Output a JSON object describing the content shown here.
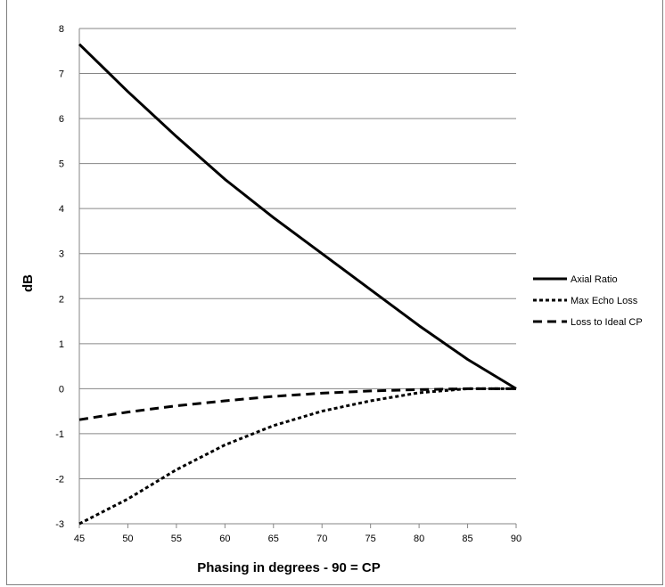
{
  "chart_data": {
    "type": "line",
    "title": "",
    "xlabel": "Phasing in degrees - 90 = CP",
    "ylabel": "dB",
    "xlim": [
      45,
      90
    ],
    "ylim": [
      -3,
      8
    ],
    "x_ticks": [
      45,
      50,
      55,
      60,
      65,
      70,
      75,
      80,
      85,
      90
    ],
    "y_ticks": [
      -3,
      -2,
      -1,
      0,
      1,
      2,
      3,
      4,
      5,
      6,
      7,
      8
    ],
    "grid": "horizontal",
    "legend_position": "right",
    "x": [
      45,
      50,
      55,
      60,
      65,
      70,
      75,
      80,
      85,
      90
    ],
    "series": [
      {
        "name": "Axial Ratio",
        "style": "solid",
        "color": "#000000",
        "values": [
          7.65,
          6.6,
          5.6,
          4.65,
          3.8,
          3.0,
          2.2,
          1.4,
          0.65,
          0.0
        ]
      },
      {
        "name": "Max Echo Loss",
        "style": "dotted",
        "color": "#000000",
        "values": [
          -3.0,
          -2.45,
          -1.8,
          -1.25,
          -0.82,
          -0.5,
          -0.27,
          -0.09,
          0.0,
          0.0
        ]
      },
      {
        "name": "Loss to Ideal CP",
        "style": "dashed",
        "color": "#000000",
        "values": [
          -0.69,
          -0.52,
          -0.38,
          -0.27,
          -0.17,
          -0.1,
          -0.05,
          -0.02,
          0.0,
          0.0
        ]
      }
    ]
  }
}
